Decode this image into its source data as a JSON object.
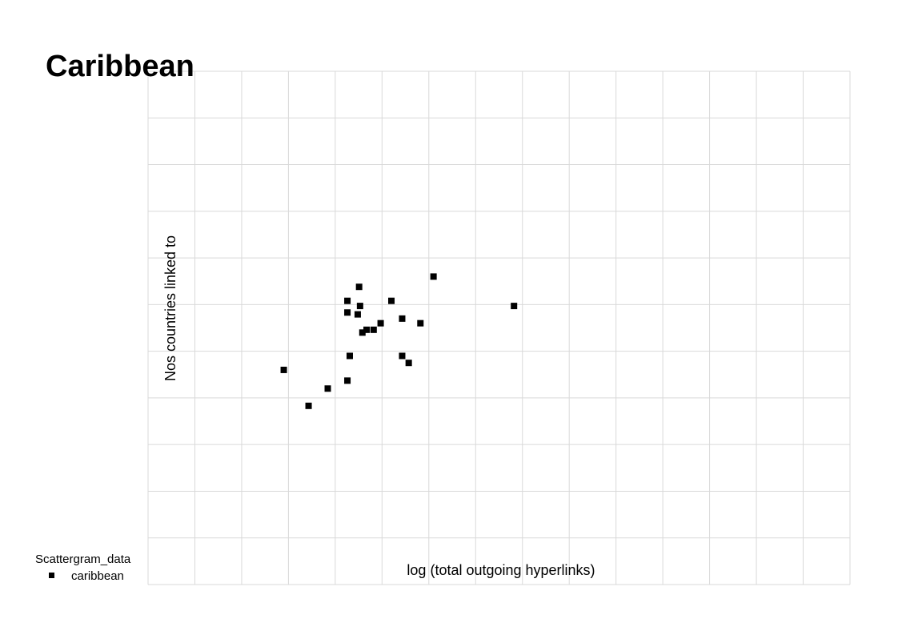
{
  "chart_data": {
    "type": "scatter",
    "title": "Caribbean",
    "xlabel": "log (total outgoing hyperlinks)",
    "ylabel": "Nos countries linked to",
    "xlim": [
      0,
      15
    ],
    "ylim": [
      0,
      11
    ],
    "grid": true,
    "legend": {
      "title": "Scattergram_data",
      "placement": "bottom-left",
      "entries": [
        {
          "label": "caribbean",
          "marker": "square",
          "color": "#000000"
        }
      ]
    },
    "series": [
      {
        "name": "caribbean",
        "color": "#000000",
        "points": [
          {
            "x": 2.9,
            "y": 4.6
          },
          {
            "x": 3.43,
            "y": 3.83
          },
          {
            "x": 3.84,
            "y": 4.2
          },
          {
            "x": 4.26,
            "y": 4.37
          },
          {
            "x": 4.31,
            "y": 4.9
          },
          {
            "x": 4.26,
            "y": 5.83
          },
          {
            "x": 4.26,
            "y": 6.08
          },
          {
            "x": 4.51,
            "y": 6.38
          },
          {
            "x": 4.53,
            "y": 5.97
          },
          {
            "x": 4.48,
            "y": 5.79
          },
          {
            "x": 4.58,
            "y": 5.4
          },
          {
            "x": 4.67,
            "y": 5.46
          },
          {
            "x": 4.82,
            "y": 5.46
          },
          {
            "x": 4.97,
            "y": 5.6
          },
          {
            "x": 5.2,
            "y": 6.08
          },
          {
            "x": 5.43,
            "y": 5.7
          },
          {
            "x": 5.43,
            "y": 4.9
          },
          {
            "x": 5.57,
            "y": 4.75
          },
          {
            "x": 5.82,
            "y": 5.6
          },
          {
            "x": 6.1,
            "y": 6.6
          },
          {
            "x": 7.82,
            "y": 5.97
          }
        ]
      }
    ]
  }
}
